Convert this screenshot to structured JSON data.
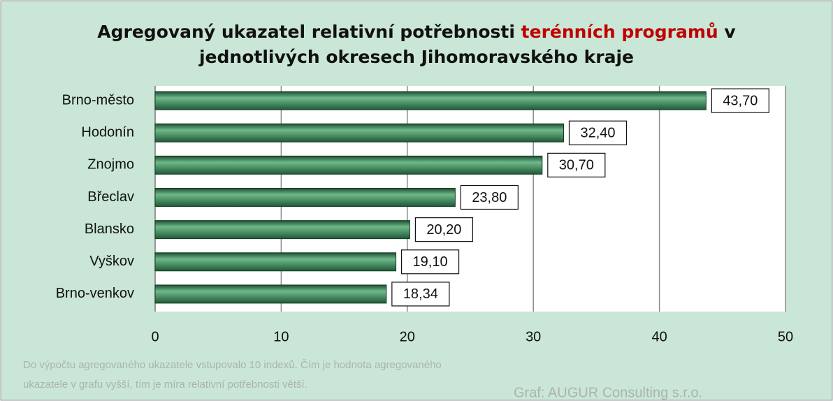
{
  "chart_data": {
    "type": "hbar",
    "title": [
      "Agregovaný ukazatel relativní potřebnosti",
      "terénních programů",
      "v",
      "jednotlivých okresech Jihomoravského kraje"
    ],
    "categories": [
      "Brno-město",
      "Hodonín",
      "Znojmo",
      "Břeclav",
      "Blansko",
      "Vyškov",
      "Brno-venkov"
    ],
    "values": [
      43.7,
      32.4,
      30.7,
      23.8,
      20.2,
      19.1,
      18.34
    ],
    "value_labels": [
      "43,70",
      "32,40",
      "30,70",
      "23,80",
      "20,20",
      "19,10",
      "18,34"
    ],
    "color": "#2e7d4f",
    "xlim": [
      0,
      50
    ],
    "xticks": [
      0,
      10,
      20,
      30,
      40,
      50
    ],
    "grid": true,
    "note": [
      "Do výpočtu agregovaného ukazatele vstupovalo 10 indexů. Čím je hodnota agregovaného",
      "ukazatele v grafu vyšší, tím je míra relativní potřebnosti větší."
    ],
    "credit": "Graf: AUGUR Consulting s.r.o."
  }
}
